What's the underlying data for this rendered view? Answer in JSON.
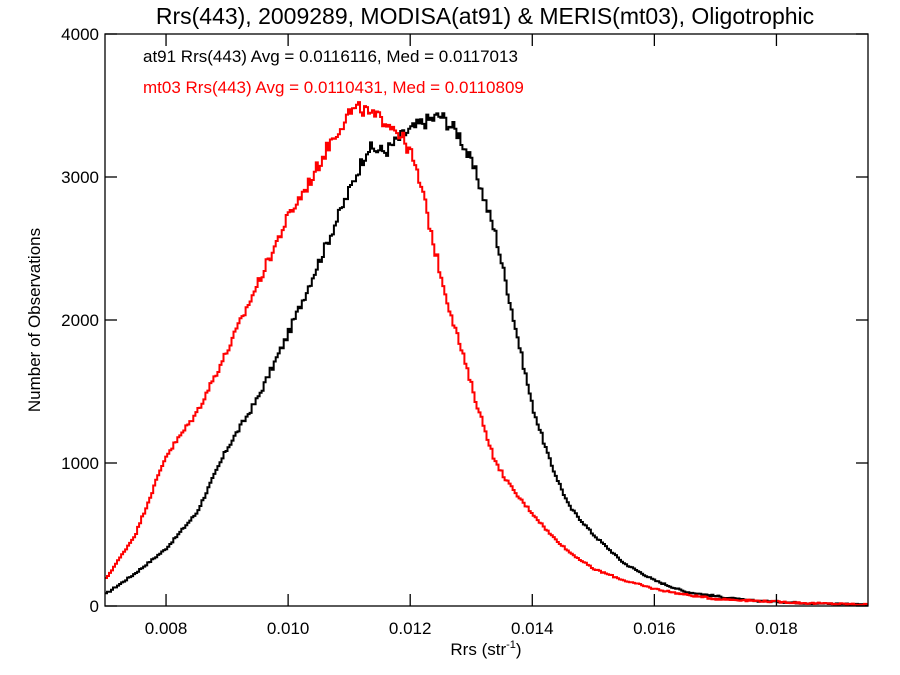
{
  "chart_data": {
    "type": "line",
    "title": "Rrs(443), 2009289, MODISA(at91) & MERIS(mt03), Oligotrophic",
    "xlabel": "Rrs (str",
    "xlabel_sup": "-1",
    "xlabel_close": ")",
    "ylabel": "Number of Observations",
    "xlim": [
      0.007,
      0.0195
    ],
    "ylim": [
      0,
      4000
    ],
    "grid": false,
    "x_ticks": [
      0.008,
      0.01,
      0.012,
      0.014,
      0.016,
      0.018
    ],
    "x_tick_labels": [
      "0.008",
      "0.010",
      "0.012",
      "0.014",
      "0.016",
      "0.018"
    ],
    "y_ticks": [
      0,
      1000,
      2000,
      3000,
      4000
    ],
    "y_tick_labels": [
      "0",
      "1000",
      "2000",
      "3000",
      "4000"
    ],
    "legend_placement": "top-left",
    "legend": [
      "at91 Rrs(443) Avg = 0.0116116, Med = 0.0117013",
      "mt03 Rrs(443) Avg = 0.0110431, Med = 0.0110809"
    ],
    "series": [
      {
        "name": "at91",
        "color": "#000000",
        "x": [
          0.007,
          0.0075,
          0.008,
          0.0085,
          0.009,
          0.0095,
          0.01,
          0.0105,
          0.011,
          0.0113,
          0.0116,
          0.0119,
          0.0122,
          0.0125,
          0.0128,
          0.0131,
          0.0134,
          0.0137,
          0.014,
          0.0143,
          0.0146,
          0.015,
          0.0155,
          0.016,
          0.0165,
          0.017,
          0.0175,
          0.018,
          0.0185,
          0.019,
          0.0195
        ],
        "y": [
          80,
          230,
          400,
          650,
          1100,
          1450,
          1900,
          2400,
          2900,
          3200,
          3180,
          3300,
          3380,
          3430,
          3300,
          3000,
          2600,
          2000,
          1400,
          1000,
          700,
          500,
          300,
          180,
          100,
          70,
          40,
          30,
          20,
          15,
          10
        ]
      },
      {
        "name": "mt03",
        "color": "#ff0000",
        "x": [
          0.007,
          0.0075,
          0.008,
          0.0085,
          0.009,
          0.0095,
          0.01,
          0.0104,
          0.0107,
          0.011,
          0.0112,
          0.0114,
          0.0116,
          0.0118,
          0.012,
          0.0122,
          0.0124,
          0.0126,
          0.0128,
          0.0131,
          0.0134,
          0.0137,
          0.014,
          0.0143,
          0.0146,
          0.015,
          0.0155,
          0.016,
          0.0165,
          0.017,
          0.0175,
          0.018,
          0.0185,
          0.019,
          0.0195
        ],
        "y": [
          180,
          500,
          1050,
          1350,
          1780,
          2250,
          2720,
          3000,
          3250,
          3450,
          3480,
          3420,
          3400,
          3320,
          3180,
          2900,
          2500,
          2150,
          1850,
          1400,
          1000,
          800,
          650,
          500,
          380,
          260,
          180,
          120,
          80,
          50,
          40,
          30,
          20,
          15,
          10
        ]
      }
    ]
  }
}
